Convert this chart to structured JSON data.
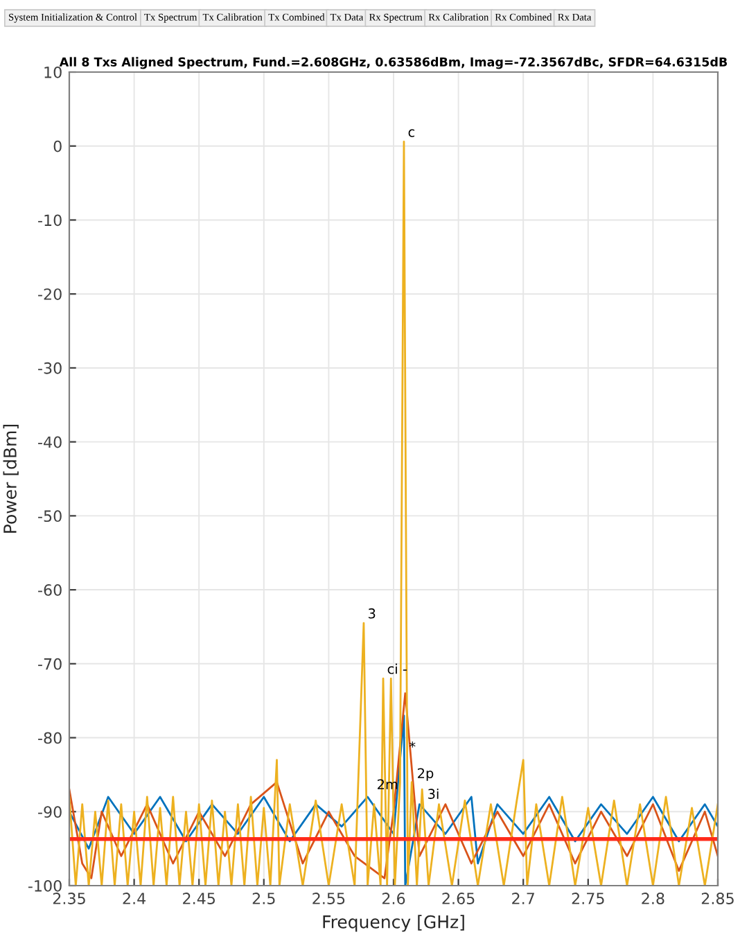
{
  "chart_data": {
    "type": "line",
    "title": "All 8 Txs Aligned Spectrum, Fund.=2.608GHz, 0.63586dBm, Imag=-72.3567dBc, SFDR=64.6315dB",
    "xlabel": "Frequency [GHz]",
    "ylabel": "Power [dBm]",
    "xlim": [
      2.35,
      2.85
    ],
    "xticks": [
      2.35,
      2.4,
      2.45,
      2.5,
      2.55,
      2.6,
      2.65,
      2.7,
      2.75,
      2.8,
      2.85
    ],
    "ylim": [
      -100,
      10
    ],
    "yticks": [
      -100,
      -90,
      -80,
      -70,
      -60,
      -50,
      -40,
      -30,
      -20,
      -10,
      0,
      10
    ],
    "grid": true,
    "series": [
      {
        "color": "#0072bd",
        "x": [
          2.35,
          2.365,
          2.38,
          2.4,
          2.42,
          2.44,
          2.46,
          2.48,
          2.5,
          2.52,
          2.54,
          2.56,
          2.58,
          2.6,
          2.608,
          2.609,
          2.62,
          2.64,
          2.66,
          2.665,
          2.68,
          2.7,
          2.72,
          2.74,
          2.76,
          2.78,
          2.8,
          2.82,
          2.84,
          2.85
        ],
        "values": [
          -90,
          -95,
          -88,
          -93,
          -88,
          -94,
          -89,
          -93,
          -88,
          -94,
          -89,
          -92,
          -88,
          -93,
          -77,
          -100,
          -89,
          -93,
          -88,
          -97,
          -89,
          -93,
          -88,
          -94,
          -89,
          -93,
          -88,
          -94,
          -89,
          -92
        ]
      },
      {
        "color": "#d95319",
        "x": [
          2.35,
          2.36,
          2.367,
          2.375,
          2.39,
          2.41,
          2.43,
          2.45,
          2.47,
          2.49,
          2.51,
          2.53,
          2.55,
          2.57,
          2.593,
          2.6,
          2.609,
          2.62,
          2.64,
          2.66,
          2.68,
          2.7,
          2.72,
          2.74,
          2.76,
          2.78,
          2.8,
          2.82,
          2.84,
          2.85
        ],
        "values": [
          -87,
          -97,
          -99,
          -90,
          -96,
          -89,
          -97,
          -90,
          -96,
          -89,
          -86,
          -97,
          -90,
          -96,
          -99,
          -90,
          -74,
          -96,
          -89,
          -97,
          -90,
          -96,
          -89,
          -97,
          -90,
          -96,
          -89,
          -98,
          -90,
          -96
        ]
      },
      {
        "color": "#edb120",
        "x": [
          2.35,
          2.355,
          2.36,
          2.365,
          2.37,
          2.375,
          2.38,
          2.385,
          2.39,
          2.395,
          2.4,
          2.405,
          2.41,
          2.415,
          2.42,
          2.425,
          2.43,
          2.435,
          2.44,
          2.445,
          2.45,
          2.455,
          2.46,
          2.465,
          2.47,
          2.475,
          2.48,
          2.485,
          2.49,
          2.495,
          2.5,
          2.505,
          2.51,
          2.512,
          2.52,
          2.53,
          2.54,
          2.55,
          2.56,
          2.57,
          2.577,
          2.58,
          2.585,
          2.59,
          2.592,
          2.595,
          2.598,
          2.601,
          2.605,
          2.608,
          2.611,
          2.614,
          2.618,
          2.622,
          2.627,
          2.635,
          2.645,
          2.655,
          2.665,
          2.675,
          2.685,
          2.695,
          2.7,
          2.703,
          2.71,
          2.72,
          2.73,
          2.74,
          2.75,
          2.76,
          2.77,
          2.78,
          2.79,
          2.8,
          2.81,
          2.82,
          2.83,
          2.84,
          2.85
        ],
        "values": [
          -88,
          -100,
          -89,
          -100,
          -90,
          -100,
          -88.5,
          -100,
          -89,
          -100,
          -90,
          -100,
          -88,
          -100,
          -89.5,
          -100,
          -88,
          -100,
          -90,
          -100,
          -89,
          -100,
          -88.5,
          -100,
          -90,
          -100,
          -89,
          -100,
          -88,
          -100,
          -89.5,
          -100,
          -83,
          -100,
          -89,
          -100,
          -88.5,
          -100,
          -89,
          -100,
          -64.5,
          -100,
          -89,
          -100,
          -72,
          -100,
          -72,
          -100,
          -86,
          0.6,
          -100,
          -86,
          -100,
          -87,
          -100,
          -89,
          -100,
          -88.5,
          -100,
          -89,
          -100,
          -88.5,
          -83,
          -100,
          -89,
          -100,
          -88,
          -100,
          -89.5,
          -100,
          -88.5,
          -100,
          -89,
          -100,
          -88,
          -100,
          -89.5,
          -100,
          -89
        ]
      }
    ],
    "ref_lines": [
      {
        "axis": "y",
        "value": -93.7,
        "color": "#ff2a1a"
      }
    ],
    "annotations": [
      "System Initialization & Control",
      "Tx Spectrum",
      "Tx Calibration",
      "Tx Combined",
      "Tx Data",
      "Rx Spectrum",
      "Rx Calibration",
      "Rx Combined",
      "Rx Data",
      {
        "text": "c",
        "x": 2.608,
        "y": 0.6
      },
      {
        "text": "3",
        "x": 2.577,
        "y": -64.5
      },
      {
        "text": "ci -",
        "x": 2.592,
        "y": -72
      },
      {
        "text": "*",
        "x": 2.609,
        "y": -82.5
      },
      {
        "text": "2m",
        "x": 2.584,
        "y": -87.6
      },
      {
        "text": "2p",
        "x": 2.615,
        "y": -86.1
      },
      {
        "text": "3i",
        "x": 2.623,
        "y": -88.9
      }
    ]
  }
}
